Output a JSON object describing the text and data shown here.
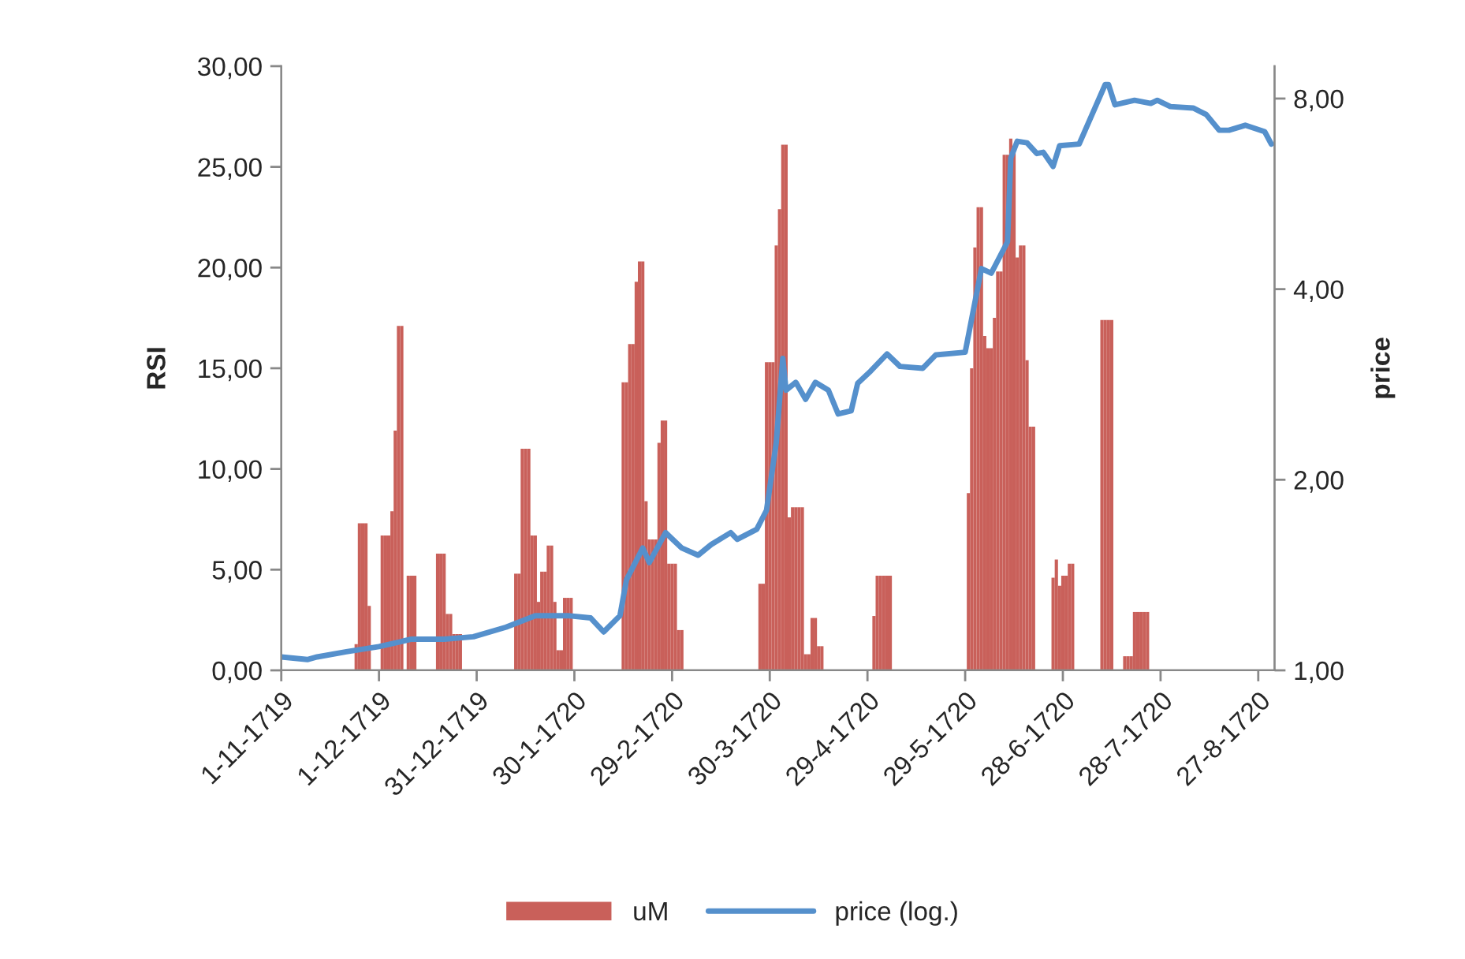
{
  "chart_data": {
    "type": "bar",
    "ylabel": "RSI",
    "y2label": "price",
    "legend": "bottom",
    "grid": false,
    "log": "y2",
    "xlim": [
      "1719-11-01",
      "1720-09-01"
    ],
    "xticks": [
      {
        "value": "1719-11-01",
        "label": "1-11-1719"
      },
      {
        "value": "1719-12-01",
        "label": "1-12-1719"
      },
      {
        "value": "1719-12-31",
        "label": "31-12-1719"
      },
      {
        "value": "1720-01-30",
        "label": "30-1-1720"
      },
      {
        "value": "1720-02-29",
        "label": "29-2-1720"
      },
      {
        "value": "1720-03-30",
        "label": "30-3-1720"
      },
      {
        "value": "1720-04-29",
        "label": "29-4-1720"
      },
      {
        "value": "1720-05-29",
        "label": "29-5-1720"
      },
      {
        "value": "1720-06-28",
        "label": "28-6-1720"
      },
      {
        "value": "1720-07-28",
        "label": "28-7-1720"
      },
      {
        "value": "1720-08-27",
        "label": "27-8-1720"
      }
    ],
    "ylim": [
      0,
      30
    ],
    "yticks": [
      {
        "value": 0,
        "label": "0,00"
      },
      {
        "value": 5,
        "label": "5,00"
      },
      {
        "value": 10,
        "label": "10,00"
      },
      {
        "value": 15,
        "label": "15,00"
      },
      {
        "value": 20,
        "label": "20,00"
      },
      {
        "value": 25,
        "label": "25,00"
      },
      {
        "value": 30,
        "label": "30,00"
      }
    ],
    "y2lim": [
      1,
      9
    ],
    "y2ticks": [
      {
        "value": 1,
        "label": "1,00"
      },
      {
        "value": 2,
        "label": "2,00"
      },
      {
        "value": 4,
        "label": "4,00"
      },
      {
        "value": 8,
        "label": "8,00"
      }
    ],
    "series": [
      {
        "name": "uM",
        "color": "#c9605a",
        "x": [
          "1719-11-24",
          "1719-11-25",
          "1719-11-26",
          "1719-11-27",
          "1719-11-28",
          "1719-12-02",
          "1719-12-03",
          "1719-12-04",
          "1719-12-05",
          "1719-12-06",
          "1719-12-07",
          "1719-12-08",
          "1719-12-10",
          "1719-12-11",
          "1719-12-12",
          "1719-12-19",
          "1719-12-20",
          "1719-12-21",
          "1719-12-22",
          "1719-12-23",
          "1719-12-24",
          "1719-12-25",
          "1719-12-26",
          "1720-01-12",
          "1720-01-13",
          "1720-01-14",
          "1720-01-15",
          "1720-01-16",
          "1720-01-17",
          "1720-01-18",
          "1720-01-19",
          "1720-01-20",
          "1720-01-21",
          "1720-01-22",
          "1720-01-23",
          "1720-01-24",
          "1720-01-25",
          "1720-01-26",
          "1720-01-27",
          "1720-01-28",
          "1720-01-29",
          "1720-02-14",
          "1720-02-15",
          "1720-02-16",
          "1720-02-17",
          "1720-02-18",
          "1720-02-19",
          "1720-02-20",
          "1720-02-21",
          "1720-02-22",
          "1720-02-23",
          "1720-02-24",
          "1720-02-25",
          "1720-02-26",
          "1720-02-27",
          "1720-02-28",
          "1720-02-29",
          "1720-03-01",
          "1720-03-02",
          "1720-03-03",
          "1720-03-27",
          "1720-03-28",
          "1720-03-29",
          "1720-03-30",
          "1720-03-31",
          "1720-04-01",
          "1720-04-02",
          "1720-04-03",
          "1720-04-04",
          "1720-04-05",
          "1720-04-06",
          "1720-04-07",
          "1720-04-08",
          "1720-04-09",
          "1720-04-10",
          "1720-04-11",
          "1720-04-12",
          "1720-04-13",
          "1720-04-14",
          "1720-04-15",
          "1720-05-01",
          "1720-05-02",
          "1720-05-03",
          "1720-05-04",
          "1720-05-05",
          "1720-05-06",
          "1720-05-30",
          "1720-05-31",
          "1720-06-01",
          "1720-06-02",
          "1720-06-03",
          "1720-06-04",
          "1720-06-05",
          "1720-06-06",
          "1720-06-07",
          "1720-06-08",
          "1720-06-09",
          "1720-06-10",
          "1720-06-11",
          "1720-06-12",
          "1720-06-13",
          "1720-06-14",
          "1720-06-15",
          "1720-06-16",
          "1720-06-17",
          "1720-06-18",
          "1720-06-19",
          "1720-06-25",
          "1720-06-26",
          "1720-06-27",
          "1720-06-28",
          "1720-06-29",
          "1720-06-30",
          "1720-07-01",
          "1720-07-10",
          "1720-07-11",
          "1720-07-12",
          "1720-07-13",
          "1720-07-17",
          "1720-07-18",
          "1720-07-19",
          "1720-07-20",
          "1720-07-21",
          "1720-07-22",
          "1720-07-23",
          "1720-07-24"
        ],
        "values": [
          1.3,
          7.3,
          7.3,
          7.3,
          3.2,
          6.7,
          6.7,
          6.7,
          7.9,
          11.9,
          17.1,
          17.1,
          4.7,
          4.7,
          4.7,
          5.8,
          5.8,
          5.8,
          2.8,
          2.8,
          1.8,
          1.8,
          1.8,
          4.8,
          4.8,
          11.0,
          11.0,
          11.0,
          6.7,
          6.7,
          3.4,
          4.9,
          4.9,
          6.2,
          6.2,
          3.4,
          1.0,
          1.0,
          3.6,
          3.6,
          3.6,
          14.3,
          14.3,
          16.2,
          16.2,
          19.3,
          20.3,
          20.3,
          8.4,
          6.5,
          6.5,
          6.5,
          11.3,
          12.4,
          12.4,
          5.3,
          5.3,
          5.3,
          2.0,
          2.0,
          4.3,
          4.3,
          15.3,
          15.3,
          15.3,
          21.1,
          22.9,
          26.1,
          26.1,
          7.6,
          8.1,
          8.1,
          8.1,
          8.1,
          0.8,
          0.8,
          2.6,
          2.6,
          1.2,
          1.2,
          2.7,
          4.7,
          4.7,
          4.7,
          4.7,
          4.7,
          8.8,
          15.0,
          21.0,
          23.0,
          23.0,
          16.6,
          16.0,
          16.0,
          17.5,
          19.8,
          19.8,
          25.6,
          25.6,
          26.4,
          25.7,
          20.5,
          21.1,
          21.1,
          15.4,
          12.1,
          12.1,
          4.6,
          5.5,
          4.2,
          4.7,
          4.7,
          5.3,
          5.3,
          17.4,
          17.4,
          17.4,
          17.4,
          0.7,
          0.7,
          0.7,
          2.9,
          2.9,
          2.9,
          2.9,
          2.9
        ]
      },
      {
        "name": "price (log.)",
        "type": "line",
        "axis": "y2",
        "color": "#5590cc",
        "x": [
          "1719-11-01",
          "1719-11-09",
          "1719-11-12",
          "1719-11-21",
          "1719-12-01",
          "1719-12-11",
          "1719-12-21",
          "1719-12-30",
          "1720-01-09",
          "1720-01-18",
          "1720-01-28",
          "1720-02-04",
          "1720-02-08",
          "1720-02-13",
          "1720-02-15",
          "1720-02-20",
          "1720-02-22",
          "1720-02-27",
          "1720-03-03",
          "1720-03-08",
          "1720-03-12",
          "1720-03-18",
          "1720-03-20",
          "1720-03-26",
          "1720-03-29",
          "1720-04-01",
          "1720-04-03",
          "1720-04-04",
          "1720-04-07",
          "1720-04-10",
          "1720-04-13",
          "1720-04-17",
          "1720-04-20",
          "1720-04-24",
          "1720-04-26",
          "1720-04-30",
          "1720-05-05",
          "1720-05-09",
          "1720-05-16",
          "1720-05-20",
          "1720-05-29",
          "1720-06-03",
          "1720-06-06",
          "1720-06-11",
          "1720-06-12",
          "1720-06-14",
          "1720-06-17",
          "1720-06-20",
          "1720-06-22",
          "1720-06-25",
          "1720-06-27",
          "1720-07-03",
          "1720-07-11",
          "1720-07-12",
          "1720-07-14",
          "1720-07-20",
          "1720-07-25",
          "1720-07-27",
          "1720-07-31",
          "1720-08-07",
          "1720-08-11",
          "1720-08-15",
          "1720-08-18",
          "1720-08-23",
          "1720-08-29",
          "1720-08-31"
        ],
        "values": [
          1.05,
          1.04,
          1.05,
          1.07,
          1.09,
          1.12,
          1.12,
          1.13,
          1.17,
          1.22,
          1.22,
          1.21,
          1.15,
          1.22,
          1.39,
          1.56,
          1.48,
          1.65,
          1.56,
          1.52,
          1.58,
          1.65,
          1.61,
          1.67,
          1.79,
          2.29,
          3.11,
          2.77,
          2.85,
          2.68,
          2.85,
          2.77,
          2.54,
          2.57,
          2.84,
          2.97,
          3.16,
          3.02,
          3.0,
          3.15,
          3.18,
          4.31,
          4.24,
          4.75,
          6.44,
          6.85,
          6.81,
          6.55,
          6.58,
          6.25,
          6.74,
          6.78,
          8.42,
          8.42,
          7.82,
          7.95,
          7.86,
          7.95,
          7.77,
          7.73,
          7.55,
          7.13,
          7.13,
          7.26,
          7.09,
          6.78
        ]
      }
    ]
  }
}
